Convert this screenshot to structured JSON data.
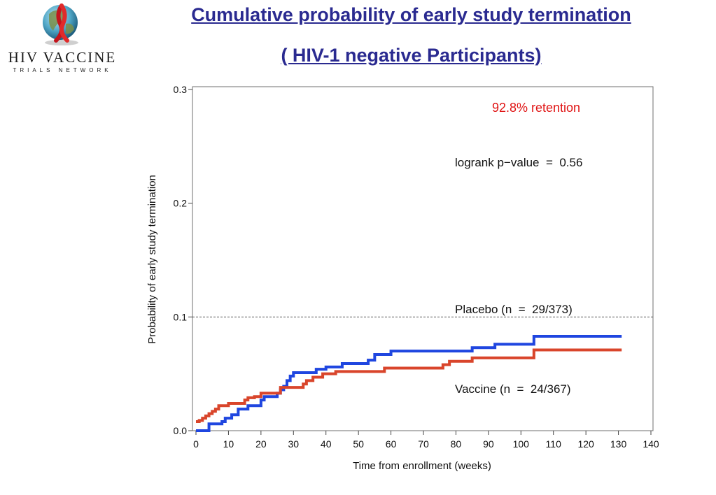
{
  "logo": {
    "name": "HIV VACCINE",
    "sub": "TRIALS NETWORK"
  },
  "header": {
    "title_line1": "Cumulative probability of early study termination",
    "title_line2": "( HIV-1 negative Participants)"
  },
  "colors": {
    "title": "#2a2a90",
    "vaccine": "#1f46e0",
    "placebo": "#d9452b",
    "retention": "#e01414"
  },
  "chart_data": {
    "type": "line",
    "xlabel": "Time from enrollment (weeks)",
    "ylabel": "Probability of early study termination",
    "xlim": [
      0,
      140
    ],
    "ylim": [
      0,
      0.3
    ],
    "x_ticks": [
      0,
      10,
      20,
      30,
      40,
      50,
      60,
      70,
      80,
      90,
      100,
      110,
      120,
      130,
      140
    ],
    "y_ticks": [
      0.0,
      0.1,
      0.2,
      0.3
    ],
    "y_tick_labels": [
      "0.0",
      "0.1",
      "0.2",
      "0.3"
    ],
    "grid": false,
    "reference_line": {
      "y": 0.1,
      "style": "dashed"
    },
    "annotations": {
      "retention": "92.8% retention",
      "logrank": "logrank p−value  =  0.56",
      "placebo_label": "Placebo (n  =  29/373)",
      "vaccine_label": "Vaccine (n  =  24/367)"
    },
    "series": [
      {
        "color": "#1f46e0",
        "step": true,
        "x": [
          0,
          4,
          8,
          9,
          11,
          13,
          16,
          20,
          21,
          25,
          26,
          27,
          28,
          29,
          30,
          37,
          40,
          45,
          53,
          55,
          60,
          70,
          85,
          92,
          104,
          131
        ],
        "y": [
          0.0,
          0.006,
          0.008,
          0.011,
          0.014,
          0.019,
          0.022,
          0.027,
          0.03,
          0.033,
          0.036,
          0.039,
          0.044,
          0.048,
          0.051,
          0.054,
          0.056,
          0.059,
          0.062,
          0.067,
          0.07,
          0.07,
          0.073,
          0.076,
          0.083,
          0.083
        ]
      },
      {
        "color": "#d9452b",
        "step": true,
        "x": [
          0,
          1,
          2,
          3,
          4,
          5,
          6,
          7,
          10,
          15,
          16,
          18,
          20,
          23,
          26,
          33,
          34,
          36,
          39,
          43,
          58,
          63,
          76,
          78,
          85,
          104,
          131
        ],
        "y": [
          0.008,
          0.009,
          0.011,
          0.013,
          0.015,
          0.017,
          0.019,
          0.022,
          0.024,
          0.027,
          0.029,
          0.03,
          0.033,
          0.033,
          0.038,
          0.041,
          0.044,
          0.047,
          0.05,
          0.052,
          0.055,
          0.055,
          0.058,
          0.061,
          0.064,
          0.071,
          0.071
        ]
      }
    ]
  }
}
